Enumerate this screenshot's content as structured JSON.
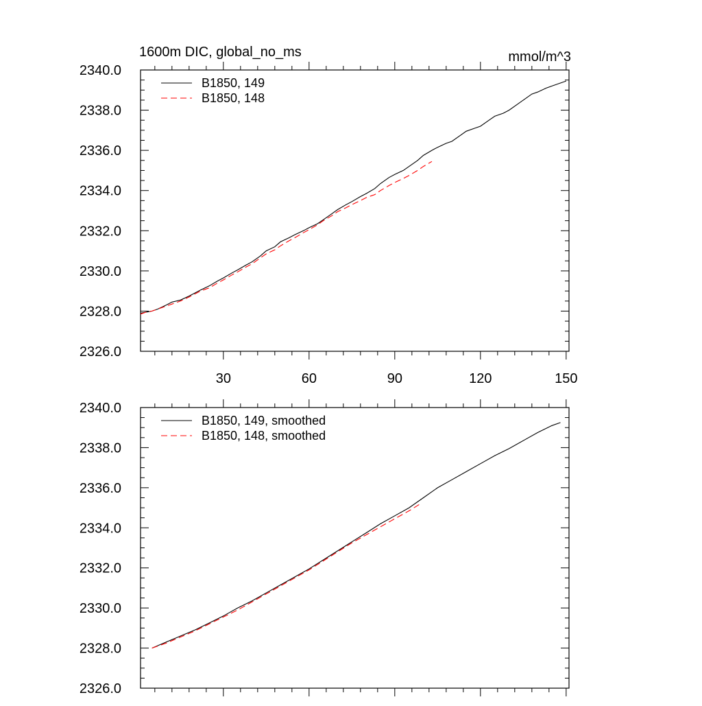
{
  "chart_data": [
    {
      "type": "line",
      "title": "1600m DIC, global_no_ms",
      "units": "mmol/m^3",
      "xlim": [
        1,
        151
      ],
      "ylim": [
        2326.0,
        2340.0
      ],
      "x_ticks": [
        30,
        60,
        90,
        120,
        150
      ],
      "x_tick_labels": [
        "30",
        "60",
        "90",
        "120",
        "150"
      ],
      "y_ticks": [
        2326.0,
        2328.0,
        2330.0,
        2332.0,
        2334.0,
        2336.0,
        2338.0,
        2340.0
      ],
      "y_tick_labels": [
        "2326.0",
        "2328.0",
        "2330.0",
        "2332.0",
        "2334.0",
        "2336.0",
        "2338.0",
        "2340.0"
      ],
      "legend_position": "top-left",
      "series": [
        {
          "name": "B1850, 149",
          "color": "#000000",
          "dash": "solid",
          "x": [
            1,
            3,
            5,
            7,
            10,
            12,
            15,
            18,
            20,
            22,
            25,
            28,
            30,
            33,
            35,
            38,
            40,
            43,
            45,
            48,
            50,
            53,
            55,
            58,
            60,
            63,
            65,
            68,
            70,
            73,
            75,
            78,
            80,
            83,
            85,
            88,
            90,
            93,
            95,
            98,
            100,
            103,
            105,
            108,
            110,
            113,
            115,
            118,
            120,
            123,
            125,
            128,
            130,
            133,
            135,
            138,
            140,
            143,
            145,
            148,
            150
          ],
          "values": [
            2327.9,
            2327.95,
            2328.0,
            2328.1,
            2328.3,
            2328.45,
            2328.55,
            2328.75,
            2328.9,
            2329.05,
            2329.25,
            2329.5,
            2329.65,
            2329.9,
            2330.05,
            2330.3,
            2330.45,
            2330.75,
            2331.0,
            2331.2,
            2331.45,
            2331.65,
            2331.8,
            2332.0,
            2332.15,
            2332.35,
            2332.55,
            2332.85,
            2333.05,
            2333.3,
            2333.45,
            2333.7,
            2333.85,
            2334.1,
            2334.35,
            2334.65,
            2334.8,
            2335.0,
            2335.2,
            2335.5,
            2335.75,
            2336.0,
            2336.15,
            2336.35,
            2336.45,
            2336.75,
            2336.95,
            2337.1,
            2337.2,
            2337.5,
            2337.7,
            2337.85,
            2338.0,
            2338.3,
            2338.5,
            2338.8,
            2338.9,
            2339.1,
            2339.2,
            2339.35,
            2339.45
          ]
        },
        {
          "name": "B1850, 148",
          "color": "#ff0000",
          "dash": "dashed",
          "x": [
            1,
            3,
            5,
            7,
            10,
            12,
            15,
            18,
            20,
            22,
            25,
            28,
            30,
            33,
            35,
            38,
            40,
            43,
            45,
            48,
            50,
            53,
            55,
            58,
            60,
            63,
            65,
            68,
            70,
            73,
            75,
            78,
            80,
            83,
            85,
            88,
            90,
            93,
            95,
            98,
            100,
            103
          ],
          "values": [
            2327.85,
            2327.95,
            2328.0,
            2328.1,
            2328.25,
            2328.35,
            2328.5,
            2328.7,
            2328.85,
            2329.0,
            2329.15,
            2329.4,
            2329.55,
            2329.8,
            2329.95,
            2330.2,
            2330.35,
            2330.65,
            2330.85,
            2331.05,
            2331.25,
            2331.5,
            2331.65,
            2331.9,
            2332.05,
            2332.3,
            2332.5,
            2332.75,
            2332.95,
            2333.15,
            2333.3,
            2333.5,
            2333.65,
            2333.8,
            2334.0,
            2334.25,
            2334.4,
            2334.6,
            2334.75,
            2335.0,
            2335.2,
            2335.45
          ]
        }
      ]
    },
    {
      "type": "line",
      "xlim": [
        1,
        151
      ],
      "ylim": [
        2326.0,
        2340.0
      ],
      "x_ticks": [
        30,
        60,
        90,
        120,
        150
      ],
      "y_ticks": [
        2326.0,
        2328.0,
        2330.0,
        2332.0,
        2334.0,
        2336.0,
        2338.0,
        2340.0
      ],
      "y_tick_labels": [
        "2326.0",
        "2328.0",
        "2330.0",
        "2332.0",
        "2334.0",
        "2336.0",
        "2338.0",
        "2340.0"
      ],
      "legend_position": "top-left",
      "series": [
        {
          "name": "B1850, 149, smoothed",
          "color": "#000000",
          "dash": "solid",
          "x": [
            5,
            10,
            15,
            20,
            25,
            30,
            35,
            40,
            45,
            50,
            55,
            60,
            65,
            70,
            75,
            80,
            85,
            90,
            95,
            100,
            105,
            110,
            115,
            120,
            125,
            130,
            135,
            140,
            145,
            148
          ],
          "values": [
            2328.0,
            2328.3,
            2328.6,
            2328.9,
            2329.25,
            2329.6,
            2330.0,
            2330.35,
            2330.75,
            2331.15,
            2331.55,
            2331.95,
            2332.4,
            2332.85,
            2333.3,
            2333.75,
            2334.2,
            2334.6,
            2335.0,
            2335.5,
            2336.0,
            2336.4,
            2336.8,
            2337.2,
            2337.6,
            2337.95,
            2338.35,
            2338.75,
            2339.1,
            2339.25
          ]
        },
        {
          "name": "B1850, 148, smoothed",
          "color": "#ff0000",
          "dash": "dashed",
          "x": [
            5,
            10,
            15,
            20,
            25,
            30,
            35,
            40,
            45,
            50,
            55,
            60,
            65,
            70,
            75,
            80,
            85,
            90,
            95,
            99
          ],
          "values": [
            2328.0,
            2328.25,
            2328.55,
            2328.85,
            2329.2,
            2329.55,
            2329.9,
            2330.3,
            2330.7,
            2331.1,
            2331.5,
            2331.9,
            2332.35,
            2332.8,
            2333.25,
            2333.65,
            2334.05,
            2334.45,
            2334.85,
            2335.2
          ]
        }
      ]
    }
  ]
}
